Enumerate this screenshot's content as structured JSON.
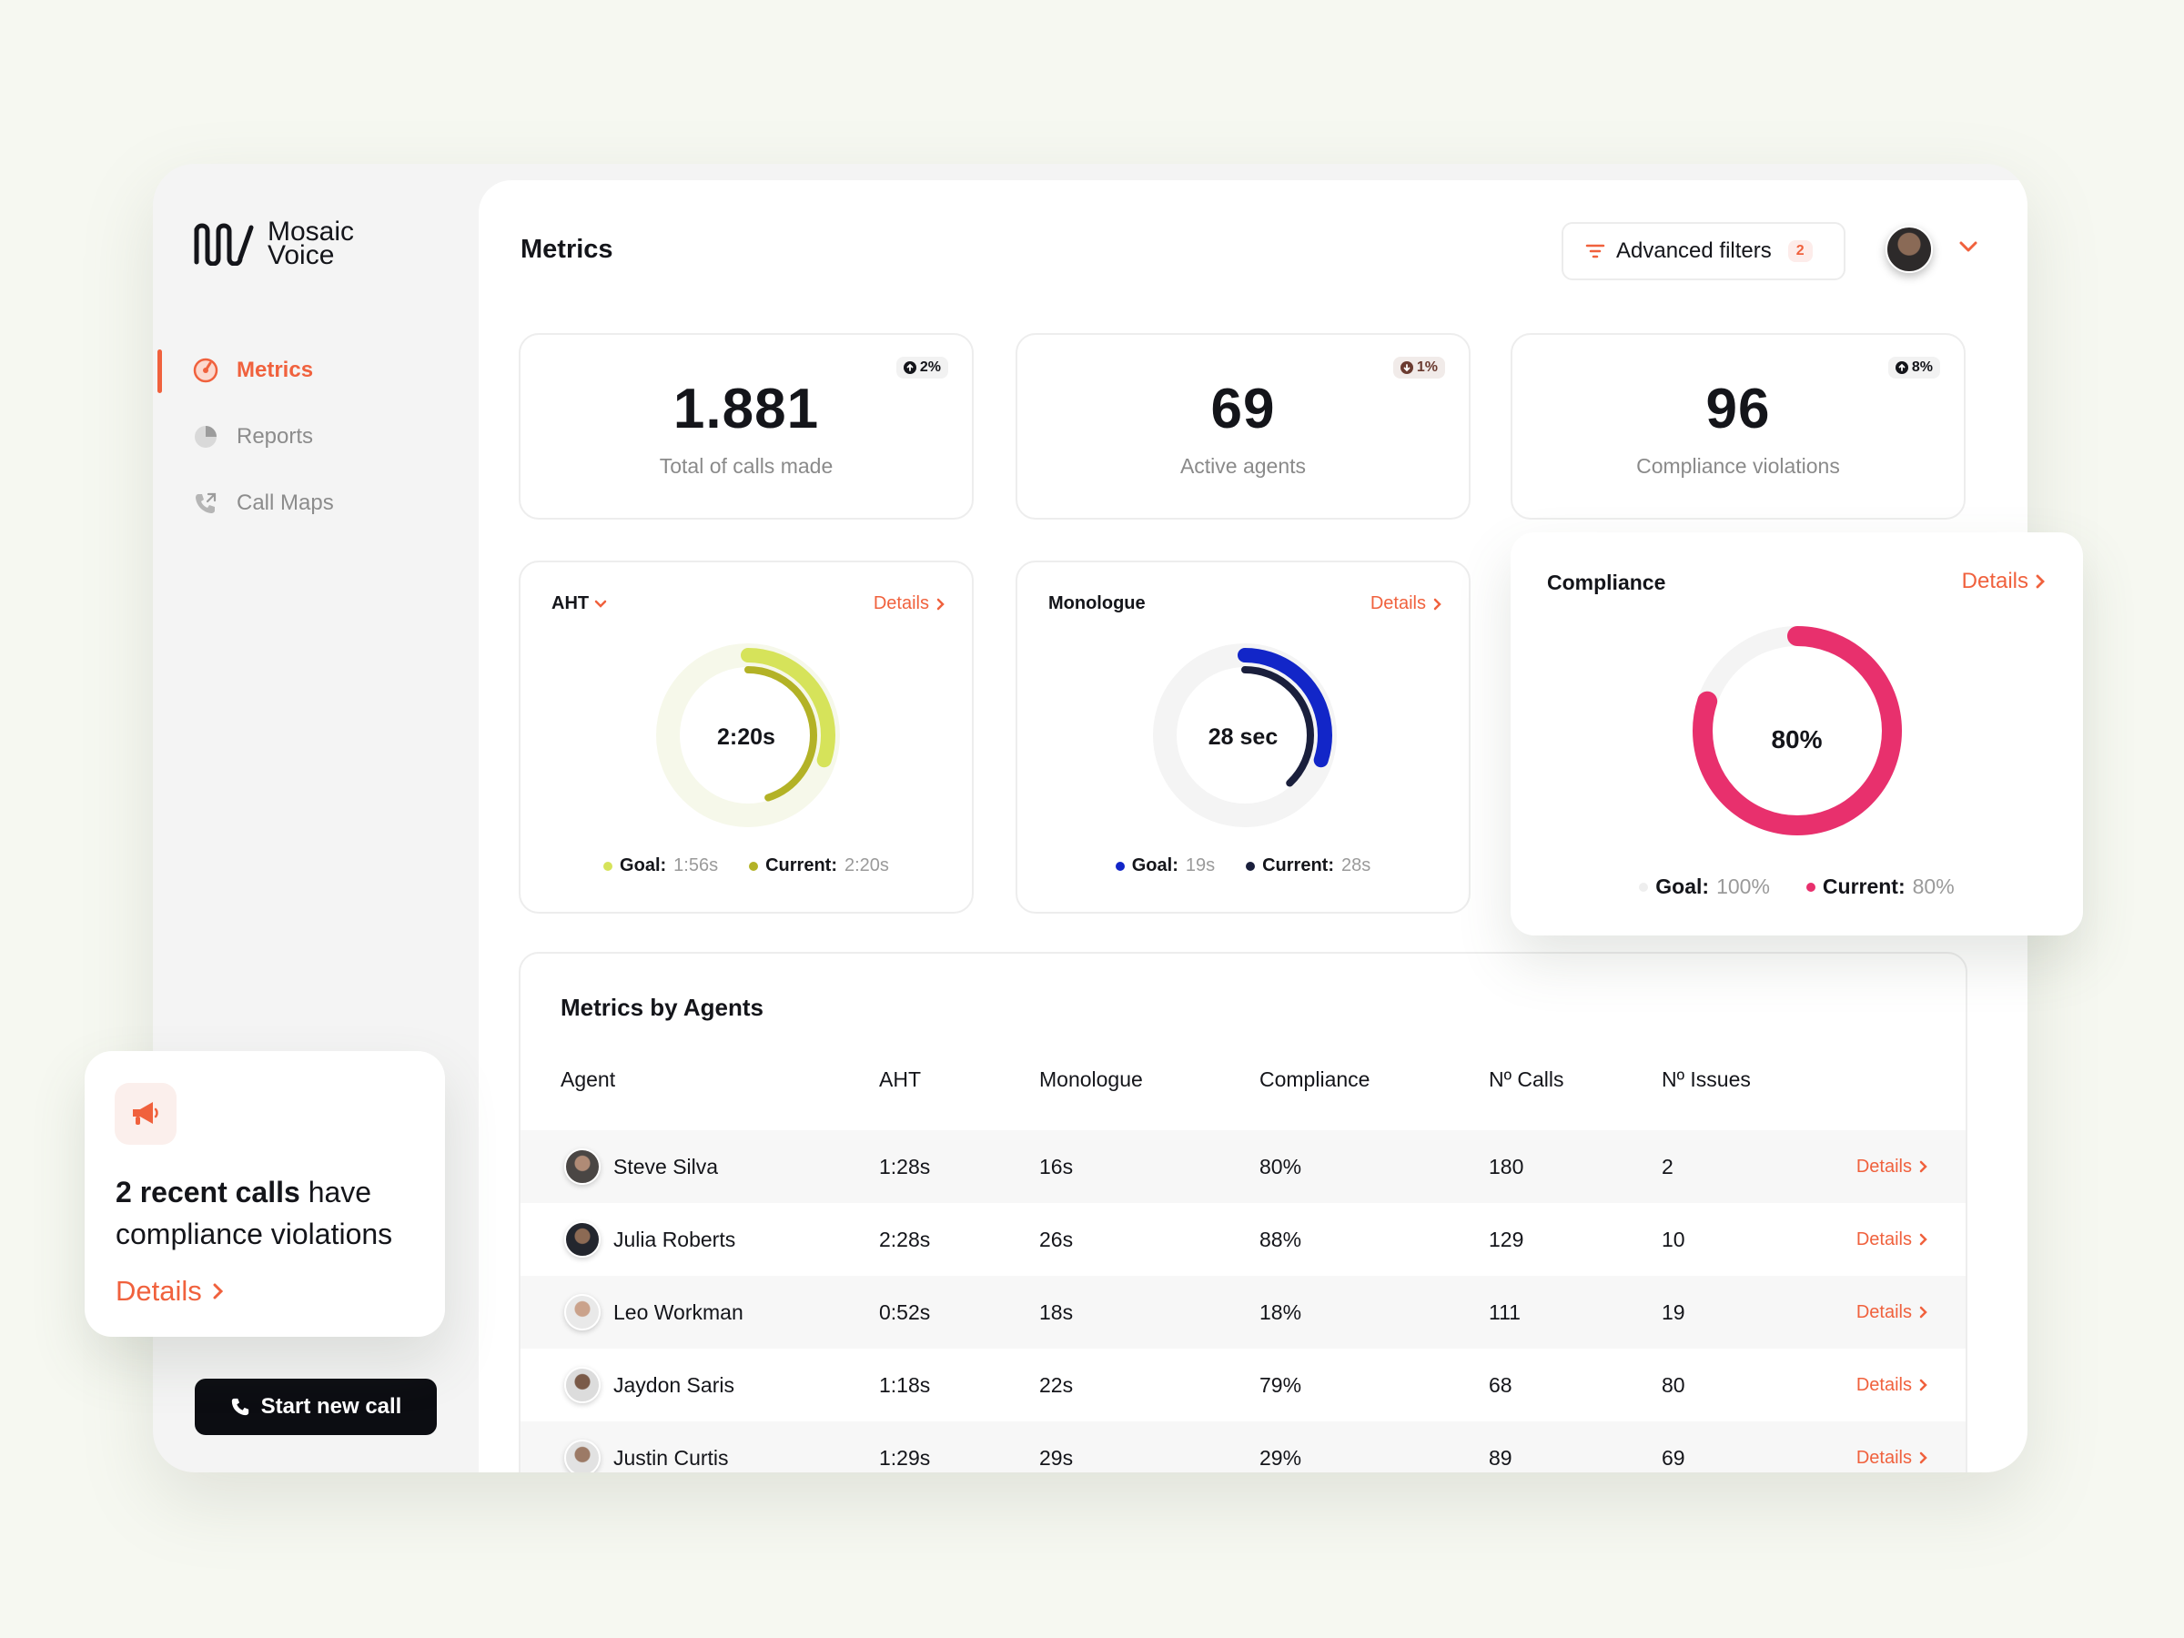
{
  "brand": {
    "line1": "Mosaic",
    "line2": "Voice"
  },
  "nav": [
    {
      "label": "Metrics",
      "icon": "metrics-icon",
      "active": true
    },
    {
      "label": "Reports",
      "icon": "pie-chart-icon",
      "active": false
    },
    {
      "label": "Call Maps",
      "icon": "phone-call-icon",
      "active": false
    }
  ],
  "start_call": {
    "label": "Start new call"
  },
  "header": {
    "title": "Metrics",
    "filters_label": "Advanced filters",
    "filters_count": "2"
  },
  "kpis": [
    {
      "value": "1.881",
      "label": "Total of calls made",
      "delta": "2%",
      "direction": "up"
    },
    {
      "value": "69",
      "label": "Active agents",
      "delta": "1%",
      "direction": "down"
    },
    {
      "value": "96",
      "label": "Compliance violations",
      "delta": "8%",
      "direction": "up"
    }
  ],
  "gauges": {
    "aht": {
      "title": "AHT",
      "details": "Details",
      "center": "2:20s",
      "goal_label": "Goal:",
      "goal_value": "1:56s",
      "current_label": "Current:",
      "current_value": "2:20s",
      "goal_fraction": 0.3,
      "current_fraction": 0.45,
      "goal_color": "#d6e35a",
      "current_color": "#b3b226",
      "track_color": "#f6f8ea"
    },
    "monologue": {
      "title": "Monologue",
      "details": "Details",
      "center": "28 sec",
      "goal_label": "Goal:",
      "goal_value": "19s",
      "current_label": "Current:",
      "current_value": "28s",
      "goal_fraction": 0.3,
      "current_fraction": 0.38,
      "goal_color": "#1226c8",
      "current_color": "#1a1f3c",
      "track_color": "#f4f4f4"
    },
    "compliance": {
      "title": "Compliance",
      "details": "Details",
      "center": "80%",
      "goal_label": "Goal:",
      "goal_value": "100%",
      "current_label": "Current:",
      "current_value": "80%",
      "goal_fraction": 1.0,
      "current_fraction": 0.8,
      "goal_color": "#eeeeee",
      "current_color": "#e8306d",
      "track_color": "#f4f4f4"
    }
  },
  "table": {
    "title": "Metrics by Agents",
    "columns": [
      "Agent",
      "AHT",
      "Monologue",
      "Compliance",
      "Nº Calls",
      "Nº Issues"
    ],
    "details_label": "Details",
    "rows": [
      {
        "agent": "Steve Silva",
        "aht": "1:28s",
        "monologue": "16s",
        "compliance": "80%",
        "calls": "180",
        "issues": "2"
      },
      {
        "agent": "Julia Roberts",
        "aht": "2:28s",
        "monologue": "26s",
        "compliance": "88%",
        "calls": "129",
        "issues": "10"
      },
      {
        "agent": "Leo Workman",
        "aht": "0:52s",
        "monologue": "18s",
        "compliance": "18%",
        "calls": "111",
        "issues": "19"
      },
      {
        "agent": "Jaydon Saris",
        "aht": "1:18s",
        "monologue": "22s",
        "compliance": "79%",
        "calls": "68",
        "issues": "80"
      },
      {
        "agent": "Justin Curtis",
        "aht": "1:29s",
        "monologue": "29s",
        "compliance": "29%",
        "calls": "89",
        "issues": "69"
      }
    ]
  },
  "notice": {
    "bold": "2 recent calls",
    "text_rest": " have compliance violations",
    "details": "Details"
  },
  "colors": {
    "accent": "#f0613d",
    "dark": "#0c0d12"
  }
}
